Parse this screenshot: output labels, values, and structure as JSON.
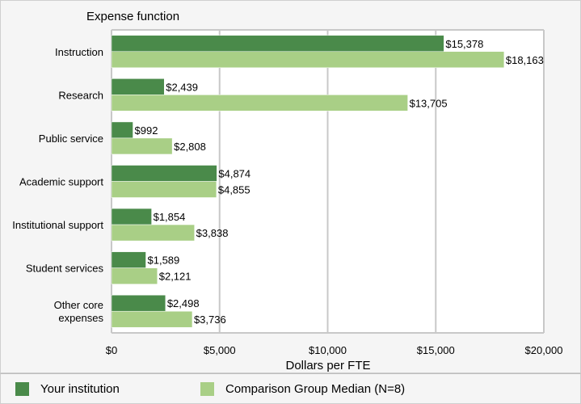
{
  "chart_data": {
    "type": "bar",
    "orientation": "horizontal",
    "title": "Expense function",
    "xlabel": "Dollars per FTE",
    "xlim": [
      0,
      20000
    ],
    "xticks": [
      0,
      5000,
      10000,
      15000,
      20000
    ],
    "xtick_labels": [
      "$0",
      "$5,000",
      "$10,000",
      "$15,000",
      "$20,000"
    ],
    "grid": true,
    "legend_position": "bottom",
    "categories": [
      "Instruction",
      "Research",
      "Public service",
      "Academic support",
      "Institutional support",
      "Student services",
      "Other core expenses"
    ],
    "category_labels": [
      [
        "Instruction"
      ],
      [
        "Research"
      ],
      [
        "Public service"
      ],
      [
        "Academic support"
      ],
      [
        "Institutional support"
      ],
      [
        "Student services"
      ],
      [
        "Other core",
        "expenses"
      ]
    ],
    "series": [
      {
        "name": "Your institution",
        "color": "#4a8a4a",
        "values": [
          15378,
          2439,
          992,
          4874,
          1854,
          1589,
          2498
        ],
        "labels": [
          "$15,378",
          "$2,439",
          "$992",
          "$4,874",
          "$1,854",
          "$1,589",
          "$2,498"
        ]
      },
      {
        "name": "Comparison Group Median (N=8)",
        "color": "#a9cf86",
        "values": [
          18163,
          13705,
          2808,
          4855,
          3838,
          2121,
          3736
        ],
        "labels": [
          "$18,163",
          "$13,705",
          "$2,808",
          "$4,855",
          "$3,838",
          "$2,121",
          "$3,736"
        ]
      }
    ]
  }
}
